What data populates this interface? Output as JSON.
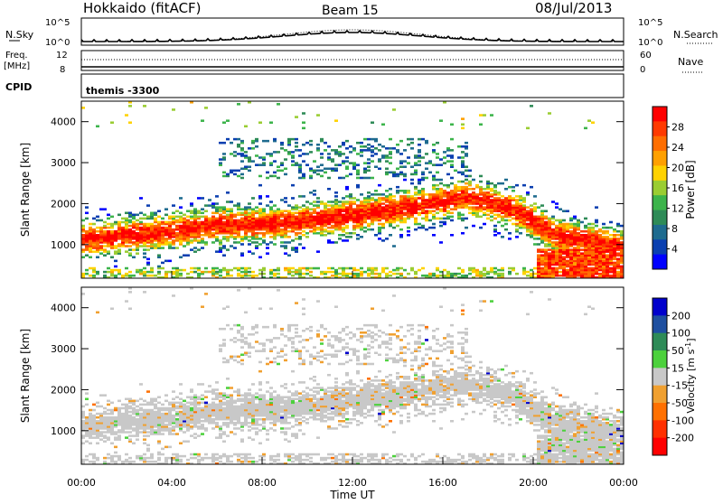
{
  "header": {
    "station": "Hokkaido (fitACF)",
    "beam": "Beam 15",
    "date": "08/Jul/2013"
  },
  "top_panels": {
    "nsky_label": "N.Sky",
    "nsky_ticks": [
      "10^5",
      "10^0"
    ],
    "nsearch_label": "N.Search",
    "nsearch_ticks": [
      "10^5",
      "10^0"
    ],
    "freq_label": "Freq.",
    "freq_unit": "[MHz]",
    "freq_ticks": [
      "12",
      "8"
    ],
    "nave_label": "Nave",
    "nave_ticks": [
      "60",
      "0"
    ],
    "cpid_label": "CPID",
    "cpid_value": "themis -3300"
  },
  "chart_data": [
    {
      "type": "heatmap",
      "name": "power",
      "ylabel": "Slant Range [km]",
      "yticks": [
        1000,
        2000,
        3000,
        4000
      ],
      "ylim": [
        180,
        4500
      ],
      "xlim": [
        0,
        24
      ],
      "colorbar": {
        "label": "Power [dB]",
        "ticks": [
          "28",
          "24",
          "20",
          "16",
          "12",
          "8",
          "4"
        ],
        "colors": [
          "#ff0000",
          "#ff3a00",
          "#ff6e00",
          "#ffa000",
          "#ffd200",
          "#9acd32",
          "#3cb44b",
          "#2e8b57",
          "#1e6b8f",
          "#0a3fb0",
          "#0000ff"
        ]
      }
    },
    {
      "type": "heatmap",
      "name": "velocity",
      "ylabel": "Slant Range [km]",
      "yticks": [
        1000,
        2000,
        3000,
        4000
      ],
      "ylim": [
        180,
        4500
      ],
      "xlim": [
        0,
        24
      ],
      "xlabel": "Time UT",
      "xticks": [
        "00:00",
        "04:00",
        "08:00",
        "12:00",
        "16:00",
        "20:00",
        "00:00"
      ],
      "colorbar": {
        "label": "Velocity [m s",
        "label_sup": "-1",
        "label_end": "]",
        "ticks": [
          "200",
          "100",
          "50",
          "15",
          "-15",
          "-50",
          "-100",
          "-200"
        ],
        "colors": [
          "#0000cc",
          "#1e4fa0",
          "#2e8b57",
          "#4cd13c",
          "#c8c8c8",
          "#f0a030",
          "#ff7000",
          "#ff3000",
          "#ff0000"
        ]
      }
    }
  ]
}
